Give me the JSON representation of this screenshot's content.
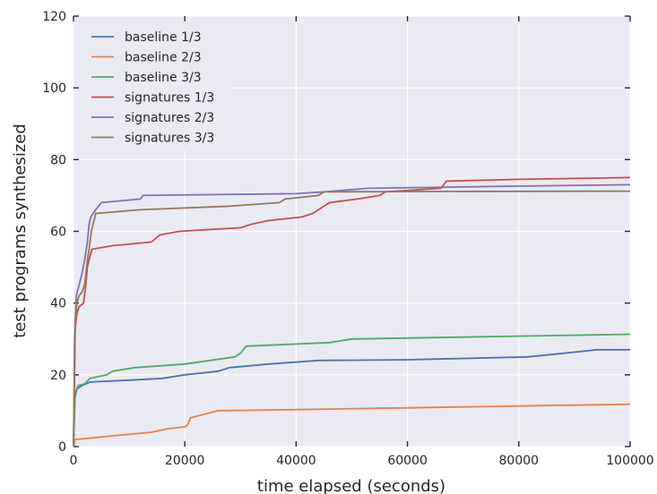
{
  "chart_data": {
    "type": "line",
    "xlabel": "time elapsed (seconds)",
    "ylabel": "test programs synthesized",
    "xlim": [
      0,
      100000
    ],
    "ylim": [
      0,
      120
    ],
    "xticks": [
      0,
      20000,
      40000,
      60000,
      80000,
      100000
    ],
    "yticks": [
      0,
      20,
      40,
      60,
      80,
      100,
      120
    ],
    "grid": true,
    "legend_position": "top-left",
    "series": [
      {
        "name": "baseline 1/3",
        "color": "#4c72b0",
        "points": [
          [
            0,
            0
          ],
          [
            200,
            13
          ],
          [
            600,
            16
          ],
          [
            1500,
            17
          ],
          [
            3000,
            18
          ],
          [
            10000,
            18.5
          ],
          [
            16000,
            19
          ],
          [
            20000,
            20
          ],
          [
            26000,
            21
          ],
          [
            28000,
            22
          ],
          [
            35000,
            23
          ],
          [
            44000,
            24
          ],
          [
            60000,
            24.2
          ],
          [
            81500,
            25
          ],
          [
            88000,
            26
          ],
          [
            94000,
            27
          ],
          [
            100000,
            27
          ]
        ]
      },
      {
        "name": "baseline 2/3",
        "color": "#dd8452",
        "points": [
          [
            0,
            0
          ],
          [
            300,
            2
          ],
          [
            2000,
            2.2
          ],
          [
            7000,
            3
          ],
          [
            14000,
            4
          ],
          [
            17000,
            5
          ],
          [
            20000,
            5.5
          ],
          [
            20500,
            6
          ],
          [
            21000,
            8
          ],
          [
            26000,
            10
          ],
          [
            40000,
            10.3
          ],
          [
            60000,
            10.8
          ],
          [
            80000,
            11.3
          ],
          [
            100000,
            11.8
          ]
        ]
      },
      {
        "name": "baseline 3/3",
        "color": "#55a868",
        "points": [
          [
            0,
            0
          ],
          [
            300,
            15
          ],
          [
            800,
            17
          ],
          [
            2000,
            17.5
          ],
          [
            3000,
            19
          ],
          [
            6000,
            20
          ],
          [
            7000,
            21
          ],
          [
            11000,
            22
          ],
          [
            20000,
            23
          ],
          [
            29000,
            25
          ],
          [
            30000,
            26
          ],
          [
            30500,
            27
          ],
          [
            31000,
            28
          ],
          [
            46000,
            29
          ],
          [
            50000,
            30
          ],
          [
            70000,
            30.5
          ],
          [
            100000,
            31.3
          ]
        ]
      },
      {
        "name": "signatures 1/3",
        "color": "#c44e52",
        "points": [
          [
            0,
            0
          ],
          [
            300,
            33
          ],
          [
            600,
            37
          ],
          [
            1000,
            39
          ],
          [
            1800,
            40
          ],
          [
            2200,
            45
          ],
          [
            2500,
            50
          ],
          [
            2800,
            52
          ],
          [
            3300,
            55
          ],
          [
            7000,
            56
          ],
          [
            14000,
            57
          ],
          [
            15500,
            59
          ],
          [
            19000,
            60
          ],
          [
            30000,
            61
          ],
          [
            32000,
            62
          ],
          [
            35000,
            63
          ],
          [
            41000,
            64
          ],
          [
            43000,
            65
          ],
          [
            44000,
            66
          ],
          [
            46000,
            68
          ],
          [
            51000,
            69
          ],
          [
            55000,
            70
          ],
          [
            56000,
            71
          ],
          [
            66000,
            72
          ],
          [
            67000,
            74
          ],
          [
            80000,
            74.5
          ],
          [
            100000,
            75
          ]
        ]
      },
      {
        "name": "signatures 2/3",
        "color": "#8172b2",
        "points": [
          [
            0,
            0
          ],
          [
            200,
            30
          ],
          [
            500,
            42
          ],
          [
            1000,
            45
          ],
          [
            1500,
            48
          ],
          [
            2000,
            52
          ],
          [
            2500,
            57
          ],
          [
            2800,
            62
          ],
          [
            3100,
            64
          ],
          [
            4000,
            66
          ],
          [
            5000,
            68
          ],
          [
            12000,
            69
          ],
          [
            12500,
            70
          ],
          [
            40000,
            70.5
          ],
          [
            45000,
            71
          ],
          [
            53000,
            72
          ],
          [
            75000,
            72.5
          ],
          [
            100000,
            73
          ]
        ]
      },
      {
        "name": "signatures 3/3",
        "color": "#937860",
        "points": [
          [
            0,
            0
          ],
          [
            300,
            35
          ],
          [
            600,
            40
          ],
          [
            1000,
            42
          ],
          [
            1500,
            43
          ],
          [
            2000,
            45
          ],
          [
            2500,
            52
          ],
          [
            2800,
            55
          ],
          [
            3200,
            60
          ],
          [
            4000,
            65
          ],
          [
            12000,
            66
          ],
          [
            28000,
            67
          ],
          [
            37000,
            68
          ],
          [
            38000,
            69
          ],
          [
            44000,
            70
          ],
          [
            45000,
            71
          ],
          [
            60000,
            71.1
          ],
          [
            100000,
            71.2
          ]
        ]
      }
    ]
  }
}
